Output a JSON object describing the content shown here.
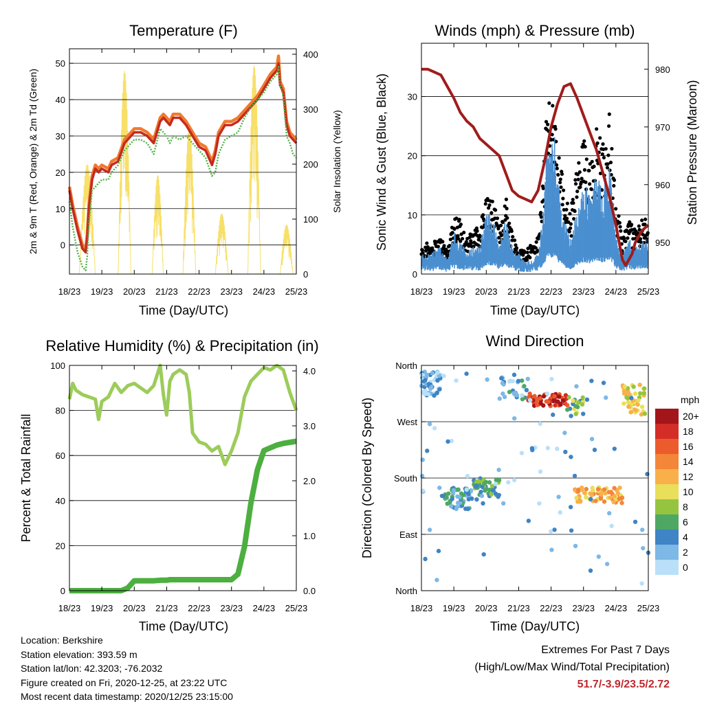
{
  "info": {
    "location": "Location: Berkshire",
    "elevation": "Station elevation: 393.59 m",
    "latlon": "Station lat/lon: 42.3203; -76.2032",
    "created": "Figure created on Fri, 2020-12-25, at 23:22 UTC",
    "recent": "Most recent data timestamp: 2020/12/25 23:15:00"
  },
  "extremes": {
    "heading": "Extremes For Past 7 Days",
    "subheading": "(High/Low/Max Wind/Total Precipitation)",
    "values": "51.7/-3.9/23.5/2.72",
    "value_color": "#c0272d"
  },
  "colors": {
    "temp_2m": "#c42a1e",
    "temp_9m": "#f07a30",
    "dewpoint": "#52b447",
    "solar": "#f7e06a",
    "wind": "#4a8fd0",
    "gust": "#000000",
    "pressure": "#a01c1c",
    "rh": "#9ccc5a",
    "precip": "#4caf3f"
  },
  "chart_data": [
    {
      "type": "line",
      "title": "Temperature (F)",
      "xlabel": "Time (Day/UTC)",
      "ylabel": "2m & 9m T (Red, Orange) & 2m Td (Green)",
      "y2label": "Solar Insolation (Yellow)",
      "x_ticks": [
        "18/23",
        "19/23",
        "20/23",
        "21/23",
        "22/23",
        "23/23",
        "24/23",
        "25/23"
      ],
      "xlim": [
        0,
        7
      ],
      "ylim": [
        -8,
        54
      ],
      "y_ticks": [
        0,
        10,
        20,
        30,
        40,
        50
      ],
      "y2lim": [
        0,
        410
      ],
      "y2_ticks": [
        0,
        100,
        200,
        300,
        400
      ],
      "grid": true,
      "x": [
        0,
        0.1,
        0.25,
        0.4,
        0.5,
        0.55,
        0.6,
        0.7,
        0.8,
        0.9,
        1.0,
        1.2,
        1.3,
        1.5,
        1.7,
        1.9,
        2.0,
        2.2,
        2.4,
        2.6,
        2.8,
        2.9,
        3.0,
        3.1,
        3.2,
        3.4,
        3.6,
        3.8,
        4.0,
        4.2,
        4.4,
        4.5,
        4.6,
        4.8,
        5.0,
        5.2,
        5.4,
        5.6,
        5.8,
        6.0,
        6.2,
        6.3,
        6.4,
        6.45,
        6.5,
        6.6,
        6.7,
        6.8,
        6.9,
        7.0
      ],
      "series": [
        {
          "name": "2m T (Red)",
          "values": [
            15,
            10,
            4,
            -1,
            -2,
            2,
            10,
            18,
            21,
            20,
            21,
            20,
            22,
            23,
            28,
            30,
            31,
            31,
            30,
            28,
            34,
            35,
            34,
            33,
            35,
            35,
            33,
            30,
            27,
            26,
            22,
            25,
            30,
            33,
            33,
            34,
            36,
            38,
            40,
            43,
            46,
            47,
            48,
            50,
            44,
            42,
            33,
            30,
            29,
            28
          ]
        },
        {
          "name": "9m T (Orange)",
          "values": [
            16,
            11,
            5,
            0,
            -1,
            3,
            11,
            19,
            22,
            21,
            22,
            21,
            23,
            24,
            29,
            31,
            32,
            32,
            31,
            29,
            35,
            36,
            35,
            34,
            36,
            36,
            34,
            31,
            28,
            27,
            23,
            26,
            31,
            34,
            34,
            35,
            37,
            39,
            41,
            44,
            47,
            48,
            49,
            52,
            45,
            43,
            34,
            31,
            30,
            29
          ]
        },
        {
          "name": "2m Td (Green)",
          "values": [
            12,
            5,
            -2,
            -6,
            -7,
            -3,
            6,
            15,
            16,
            17,
            18,
            18,
            20,
            22,
            26,
            28,
            29,
            29,
            28,
            25,
            32,
            31,
            30,
            28,
            30,
            29,
            30,
            28,
            26,
            24,
            19,
            20,
            25,
            29,
            30,
            31,
            35,
            38,
            40,
            42,
            45,
            46,
            47,
            49,
            44,
            41,
            30,
            28,
            25,
            24
          ]
        }
      ],
      "solar_series": {
        "name": "Solar Insolation (Yellow)",
        "days": [
          0,
          1,
          2,
          3,
          4,
          5,
          6
        ],
        "day_start": [
          0.3,
          0.5,
          0.55,
          0.5,
          0.5,
          0.5,
          0.5
        ],
        "day_end": [
          0.8,
          0.9,
          0.9,
          0.9,
          0.9,
          0.9,
          0.9
        ],
        "peak": [
          200,
          370,
          180,
          270,
          110,
          380,
          90
        ]
      }
    },
    {
      "type": "line",
      "title": "Winds (mph) & Pressure (mb)",
      "xlabel": "Time (Day/UTC)",
      "ylabel": "Sonic Wind & Gust (Blue, Black)",
      "y2label": "Station Pressure (Maroon)",
      "x_ticks": [
        "18/23",
        "19/23",
        "20/23",
        "21/23",
        "22/23",
        "23/23",
        "24/23",
        "25/23"
      ],
      "xlim": [
        0,
        7
      ],
      "ylim": [
        0,
        39
      ],
      "y_ticks": [
        0,
        10,
        20,
        30
      ],
      "y2lim": [
        944.5,
        984.5
      ],
      "y2_ticks": [
        950,
        960,
        970,
        980
      ],
      "grid": true,
      "wind_envelope": {
        "x": [
          0,
          0.3,
          0.6,
          0.8,
          1.0,
          1.2,
          1.4,
          1.6,
          1.8,
          2.0,
          2.2,
          2.4,
          2.6,
          2.8,
          3.0,
          3.2,
          3.4,
          3.6,
          3.8,
          3.9,
          4.0,
          4.1,
          4.2,
          4.4,
          4.6,
          4.8,
          5.0,
          5.2,
          5.4,
          5.6,
          5.8,
          6.0,
          6.2,
          6.4,
          6.6,
          6.8,
          7.0
        ],
        "values": [
          3,
          3,
          4,
          2,
          6,
          5,
          3,
          4,
          4,
          9,
          8,
          4,
          8,
          4,
          3,
          2,
          2,
          3,
          12,
          20,
          18,
          20,
          14,
          8,
          5,
          9,
          13,
          12,
          14,
          13,
          16,
          6,
          3,
          5,
          4,
          5,
          5
        ]
      },
      "gust_envelope": {
        "values": [
          5,
          5,
          6,
          4,
          10,
          9,
          6,
          7,
          8,
          13,
          12,
          8,
          13,
          7,
          4,
          4,
          5,
          6,
          20,
          30,
          26,
          30,
          22,
          14,
          10,
          18,
          22,
          20,
          24,
          22,
          26,
          12,
          6,
          9,
          7,
          9,
          9
        ]
      },
      "pressure": {
        "x": [
          0,
          0.2,
          0.4,
          0.6,
          0.8,
          1.0,
          1.2,
          1.4,
          1.6,
          1.8,
          2.0,
          2.2,
          2.4,
          2.6,
          2.8,
          3.0,
          3.2,
          3.4,
          3.6,
          3.8,
          4.0,
          4.2,
          4.4,
          4.6,
          4.8,
          5.0,
          5.2,
          5.4,
          5.6,
          5.8,
          6.0,
          6.1,
          6.2,
          6.3,
          6.4,
          6.5,
          6.6,
          6.8,
          7.0
        ],
        "values": [
          980,
          980,
          979.5,
          979,
          977,
          975,
          972.5,
          971,
          970,
          968,
          967,
          966,
          965,
          962,
          959,
          958,
          957.5,
          957,
          959,
          964,
          970,
          974,
          977,
          977.5,
          975,
          972,
          969,
          966,
          962,
          958,
          953,
          950,
          947,
          946,
          947,
          948,
          950,
          952,
          953
        ]
      }
    },
    {
      "type": "line",
      "title": "Relative Humidity (%) & Precipitation (in)",
      "xlabel": "Time (Day/UTC)",
      "ylabel": "Percent & Total Rainfall",
      "x_ticks": [
        "18/23",
        "19/23",
        "20/23",
        "21/23",
        "22/23",
        "23/23",
        "24/23",
        "25/23"
      ],
      "xlim": [
        0,
        7
      ],
      "ylim": [
        0,
        100
      ],
      "y_ticks": [
        0,
        20,
        40,
        60,
        80,
        100
      ],
      "y2lim": [
        0,
        4.1
      ],
      "y2_ticks": [
        "0.0",
        "1.0",
        "2.0",
        "3.0",
        "4.0"
      ],
      "grid": true,
      "x": [
        0,
        0.1,
        0.2,
        0.4,
        0.6,
        0.8,
        0.9,
        1.0,
        1.2,
        1.4,
        1.6,
        1.8,
        2.0,
        2.2,
        2.4,
        2.6,
        2.8,
        2.9,
        3.0,
        3.1,
        3.2,
        3.4,
        3.6,
        3.7,
        3.8,
        4.0,
        4.2,
        4.4,
        4.6,
        4.8,
        5.0,
        5.2,
        5.4,
        5.6,
        5.8,
        6.0,
        6.2,
        6.4,
        6.6,
        6.8,
        7.0
      ],
      "series": [
        {
          "name": "Relative Humidity",
          "values": [
            85,
            92,
            89,
            87,
            86,
            85,
            76,
            84,
            86,
            92,
            88,
            91,
            92,
            90,
            88,
            91,
            100,
            87,
            78,
            93,
            96,
            98,
            96,
            88,
            70,
            66,
            65,
            62,
            64,
            56,
            62,
            70,
            86,
            93,
            96,
            99,
            98,
            100,
            98,
            88,
            80
          ]
        },
        {
          "name": "Total Rainfall",
          "values": [
            0,
            0,
            0,
            0,
            0,
            0,
            0,
            0,
            0,
            0,
            0,
            0.05,
            0.18,
            0.18,
            0.18,
            0.18,
            0.19,
            0.19,
            0.19,
            0.2,
            0.2,
            0.2,
            0.2,
            0.2,
            0.2,
            0.2,
            0.2,
            0.2,
            0.2,
            0.2,
            0.2,
            0.3,
            0.8,
            1.6,
            2.2,
            2.55,
            2.6,
            2.65,
            2.68,
            2.7,
            2.72
          ]
        }
      ]
    },
    {
      "type": "scatter",
      "title": "Wind Direction",
      "xlabel": "Time (Day/UTC)",
      "ylabel": "Direction (Colored By Speed)",
      "x_ticks": [
        "18/23",
        "19/23",
        "20/23",
        "21/23",
        "22/23",
        "23/23",
        "24/23",
        "25/23"
      ],
      "xlim": [
        0,
        7
      ],
      "ylim": [
        0,
        360
      ],
      "y_ticks": [
        "North",
        "East",
        "South",
        "West",
        "North"
      ],
      "y_tick_values": [
        0,
        90,
        180,
        270,
        360
      ],
      "grid": true,
      "legend": {
        "title": "mph",
        "placement": "right",
        "labels": [
          "20+",
          "18",
          "16",
          "14",
          "12",
          "10",
          "8",
          "6",
          "4",
          "2",
          "0"
        ],
        "colors": [
          "#a3151a",
          "#d42d27",
          "#ec5b2c",
          "#f4863a",
          "#f9b04a",
          "#e9df5a",
          "#95c540",
          "#4ea863",
          "#3f84c4",
          "#7db8e6",
          "#b9e0f8"
        ]
      },
      "clusters": [
        {
          "x0": 0.0,
          "x1": 0.6,
          "dir_min": 310,
          "dir_max": 350,
          "speed": 2,
          "n": 60
        },
        {
          "x0": 0.7,
          "x1": 1.6,
          "dir_min": 130,
          "dir_max": 165,
          "speed": 4,
          "n": 55
        },
        {
          "x0": 1.6,
          "x1": 2.4,
          "dir_min": 150,
          "dir_max": 180,
          "speed": 6,
          "n": 45
        },
        {
          "x0": 2.4,
          "x1": 3.3,
          "dir_min": 305,
          "dir_max": 345,
          "speed": 3,
          "n": 30
        },
        {
          "x0": 3.3,
          "x1": 4.5,
          "dir_min": 295,
          "dir_max": 315,
          "speed": 18,
          "n": 60
        },
        {
          "x0": 4.5,
          "x1": 5.0,
          "dir_min": 280,
          "dir_max": 310,
          "speed": 7,
          "n": 20
        },
        {
          "x0": 4.7,
          "x1": 6.2,
          "dir_min": 140,
          "dir_max": 165,
          "speed": 12,
          "n": 70
        },
        {
          "x0": 6.2,
          "x1": 6.9,
          "dir_min": 280,
          "dir_max": 330,
          "speed": 10,
          "n": 50
        },
        {
          "x0": 0.0,
          "x1": 7.0,
          "dir_min": 10,
          "dir_max": 350,
          "speed": 2,
          "n": 80
        }
      ]
    }
  ]
}
